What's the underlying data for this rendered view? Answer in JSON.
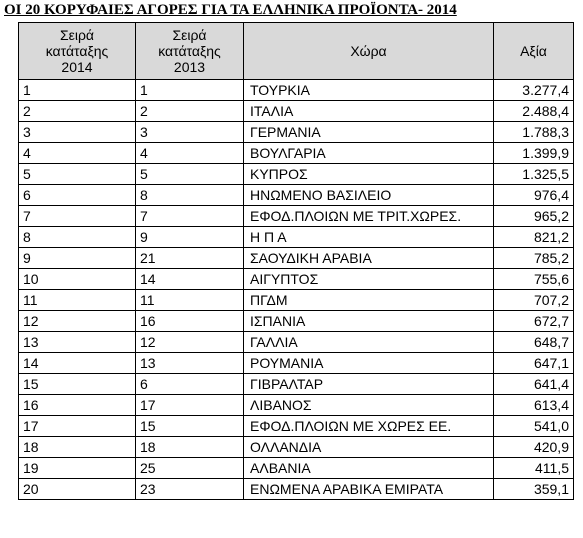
{
  "title": "ΟΙ 20 ΚΟΡΥΦΑΙΕΣ ΑΓΟΡΕΣ ΓΙΑ ΤΑ ΕΛΛΗΝΙΚΑ ΠΡΟΪΟΝΤΑ- 2014",
  "table": {
    "header": [
      "Σειρά\nκατάταξης\n2014",
      "Σειρά\nκατάταξης\n2013",
      "Χώρα",
      "Αξία"
    ],
    "rows": [
      [
        1,
        1,
        "ΤΟΥΡΚΙΑ",
        "3.277,4"
      ],
      [
        2,
        2,
        "ΙΤΑΛΙΑ",
        "2.488,4"
      ],
      [
        3,
        3,
        "ΓΕΡΜΑΝΙΑ",
        "1.788,3"
      ],
      [
        4,
        4,
        "ΒΟΥΛΓΑΡΙΑ",
        "1.399,9"
      ],
      [
        5,
        5,
        "ΚΥΠΡΟΣ",
        "1.325,5"
      ],
      [
        6,
        8,
        "ΗΝΩΜΕΝΟ ΒΑΣΙΛΕΙΟ",
        "976,4"
      ],
      [
        7,
        7,
        "ΕΦΟΔ.ΠΛΟΙΩΝ ΜΕ ΤΡΙΤ.ΧΩΡΕΣ.",
        "965,2"
      ],
      [
        8,
        9,
        "Η Π Α",
        "821,2"
      ],
      [
        9,
        21,
        "ΣΑΟΥΔΙΚΗ ΑΡΑΒΙΑ",
        "785,2"
      ],
      [
        10,
        14,
        "ΑΙΓΥΠΤΟΣ",
        "755,6"
      ],
      [
        11,
        11,
        "ΠΓΔΜ",
        "707,2"
      ],
      [
        12,
        16,
        "ΙΣΠΑΝΙΑ",
        "672,7"
      ],
      [
        13,
        12,
        "ΓΑΛΛΙΑ",
        "648,7"
      ],
      [
        14,
        13,
        "ΡΟΥΜΑΝΙΑ",
        "647,1"
      ],
      [
        15,
        6,
        "ΓΙΒΡΑΛΤΑΡ",
        "641,4"
      ],
      [
        16,
        17,
        "ΛΙΒΑΝΟΣ",
        "613,4"
      ],
      [
        17,
        15,
        "ΕΦΟΔ.ΠΛΟΙΩΝ ΜΕ ΧΩΡΕΣ ΕΕ.",
        "541,0"
      ],
      [
        18,
        18,
        "ΟΛΛΑΝΔΙΑ",
        "420,9"
      ],
      [
        19,
        25,
        "ΑΛΒΑΝΙΑ",
        "411,5"
      ],
      [
        20,
        23,
        "ΕΝΩΜΕΝΑ ΑΡΑΒΙΚΑ ΕΜΙΡΑΤΑ",
        "359,1"
      ]
    ]
  }
}
